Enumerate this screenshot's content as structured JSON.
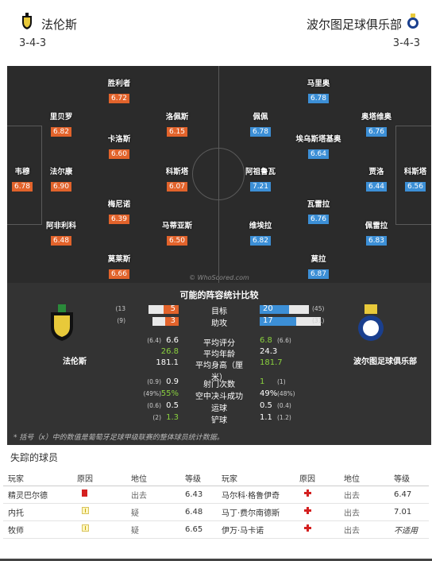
{
  "home": {
    "name": "法伦斯",
    "formation": "3-4-3",
    "players": [
      {
        "name": "胜利者",
        "rating": "6.72"
      },
      {
        "name": "里贝罗",
        "rating": "6.82"
      },
      {
        "name": "洛佩斯",
        "rating": "6.15"
      },
      {
        "name": "卡洛斯",
        "rating": "6.60"
      },
      {
        "name": "韦穆",
        "rating": "6.78"
      },
      {
        "name": "法尔康",
        "rating": "6.90"
      },
      {
        "name": "科斯塔",
        "rating": "6.07"
      },
      {
        "name": "梅尼诺",
        "rating": "6.39"
      },
      {
        "name": "阿非利科",
        "rating": "6.48"
      },
      {
        "name": "马蒂亚斯",
        "rating": "6.50"
      },
      {
        "name": "莫莱斯",
        "rating": "6.66"
      }
    ]
  },
  "away": {
    "name": "波尔图足球俱乐部",
    "formation": "3-4-3",
    "players": [
      {
        "name": "马里奥",
        "rating": "6.78"
      },
      {
        "name": "奥塔维奥",
        "rating": "6.76"
      },
      {
        "name": "佩佩",
        "rating": "6.78"
      },
      {
        "name": "埃乌斯塔基奥",
        "rating": "6.64"
      },
      {
        "name": "阿祖鲁瓦",
        "rating": "7.21"
      },
      {
        "name": "贾洛",
        "rating": "6.44"
      },
      {
        "name": "科斯塔",
        "rating": "6.56"
      },
      {
        "name": "瓦雷拉",
        "rating": "6.76"
      },
      {
        "name": "维埃拉",
        "rating": "6.82"
      },
      {
        "name": "佩雷拉",
        "rating": "6.83"
      },
      {
        "name": "莫拉",
        "rating": "6.87"
      }
    ]
  },
  "watermark": "© WhoScored.com",
  "compare": {
    "title": "可能的阵容统计比较",
    "home_team": "法伦斯",
    "away_team": "波尔图足球俱乐部",
    "bar_rows": [
      {
        "label": "目标",
        "home": "5",
        "home_paren": "(13",
        "away": "20",
        "away_paren": "(45)",
        "home_frac": 0.38,
        "away_frac": 0.44
      },
      {
        "label": "助攻",
        "home": "3",
        "home_paren": "(9)",
        "away": "17",
        "away_paren": "(31)",
        "home_frac": 0.33,
        "away_frac": 0.55
      }
    ],
    "rows": [
      {
        "label": "平均评分",
        "home": "6.6",
        "home_paren": "(6.4)",
        "away": "6.8",
        "away_paren": "(6.6)",
        "green": "away"
      },
      {
        "label": "平均年龄",
        "home": "26.8",
        "home_paren": "",
        "away": "24.3",
        "away_paren": "",
        "green": "home"
      },
      {
        "label": "平均身高（厘米）",
        "home": "181.1",
        "home_paren": "",
        "away": "181.7",
        "away_paren": "",
        "green": "away"
      },
      {
        "label": "射门次数",
        "home": "0.9",
        "home_paren": "(0.9)",
        "away": "1",
        "away_paren": "(1)",
        "green": "away"
      },
      {
        "label": "空中决斗成功",
        "home": "55%",
        "home_paren": "(49%)",
        "away": "49%",
        "away_paren": "(48%)",
        "green": "home"
      },
      {
        "label": "运球",
        "home": "0.5",
        "home_paren": "(0.6)",
        "away": "0.5",
        "away_paren": "(0.4)",
        "green": ""
      },
      {
        "label": "铲球",
        "home": "1.3",
        "home_paren": "(2)",
        "away": "1.1",
        "away_paren": "(1.2)",
        "green": "home"
      }
    ],
    "note": "* 括号（x）中的数值是葡萄牙足球甲级联赛的整体球员统计数据。"
  },
  "missing": {
    "title": "失踪的球员",
    "headers": [
      "玩家",
      "原因",
      "地位",
      "等级",
      "玩家",
      "原因",
      "地位",
      "等级"
    ],
    "rows": [
      {
        "lp": "精灵巴尔德",
        "lr": "red-card",
        "ls": "出去",
        "lg": "6.43",
        "rp": "马尔科·格鲁伊奇",
        "rr": "injury",
        "rs": "出去",
        "rg": "6.47"
      },
      {
        "lp": "内托",
        "lr": "doubtful",
        "ls": "疑",
        "lg": "6.48",
        "rp": "马丁·费尔南德斯",
        "rr": "injury",
        "rs": "出去",
        "rg": "7.01"
      },
      {
        "lp": "牧师",
        "lr": "doubtful",
        "ls": "疑",
        "lg": "6.65",
        "rp": "伊万·马卡诺",
        "rr": "injury",
        "rs": "出去",
        "rg": "不适用"
      }
    ]
  }
}
